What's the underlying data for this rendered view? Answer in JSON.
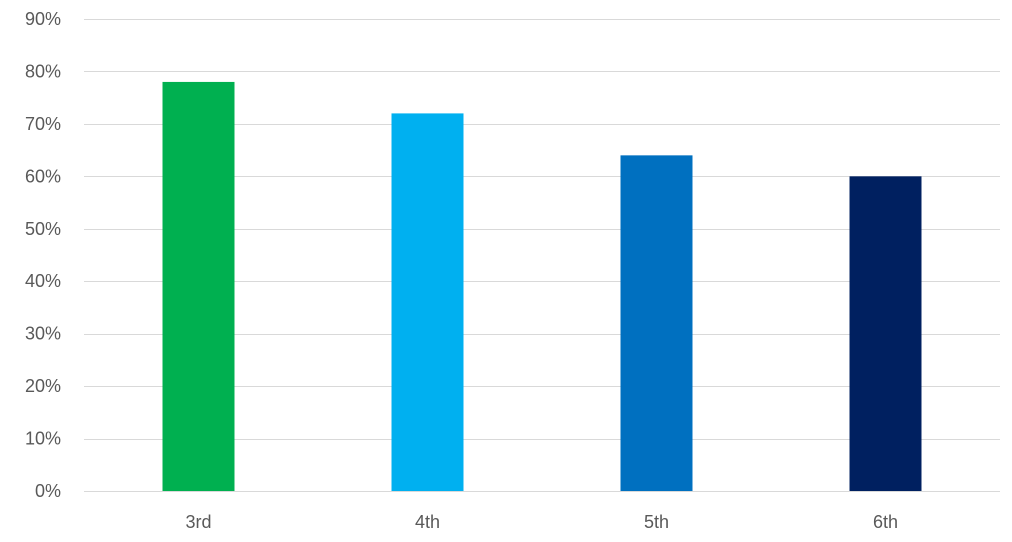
{
  "chart_data": {
    "type": "bar",
    "categories": [
      "3rd",
      "4th",
      "5th",
      "6th"
    ],
    "values": [
      0.78,
      0.72,
      0.64,
      0.6
    ],
    "bar_colors": [
      "#00B050",
      "#00B0F0",
      "#0070C0",
      "#002060"
    ],
    "ylim": [
      0,
      0.9
    ],
    "y_ticks": [
      0,
      0.1,
      0.2,
      0.3,
      0.4,
      0.5,
      0.6,
      0.7,
      0.8,
      0.9
    ],
    "y_tick_labels": [
      "0%",
      "10%",
      "20%",
      "30%",
      "40%",
      "50%",
      "60%",
      "70%",
      "80%",
      "90%"
    ],
    "grid": true,
    "legend": "none",
    "title": "",
    "xlabel": "",
    "ylabel": ""
  }
}
